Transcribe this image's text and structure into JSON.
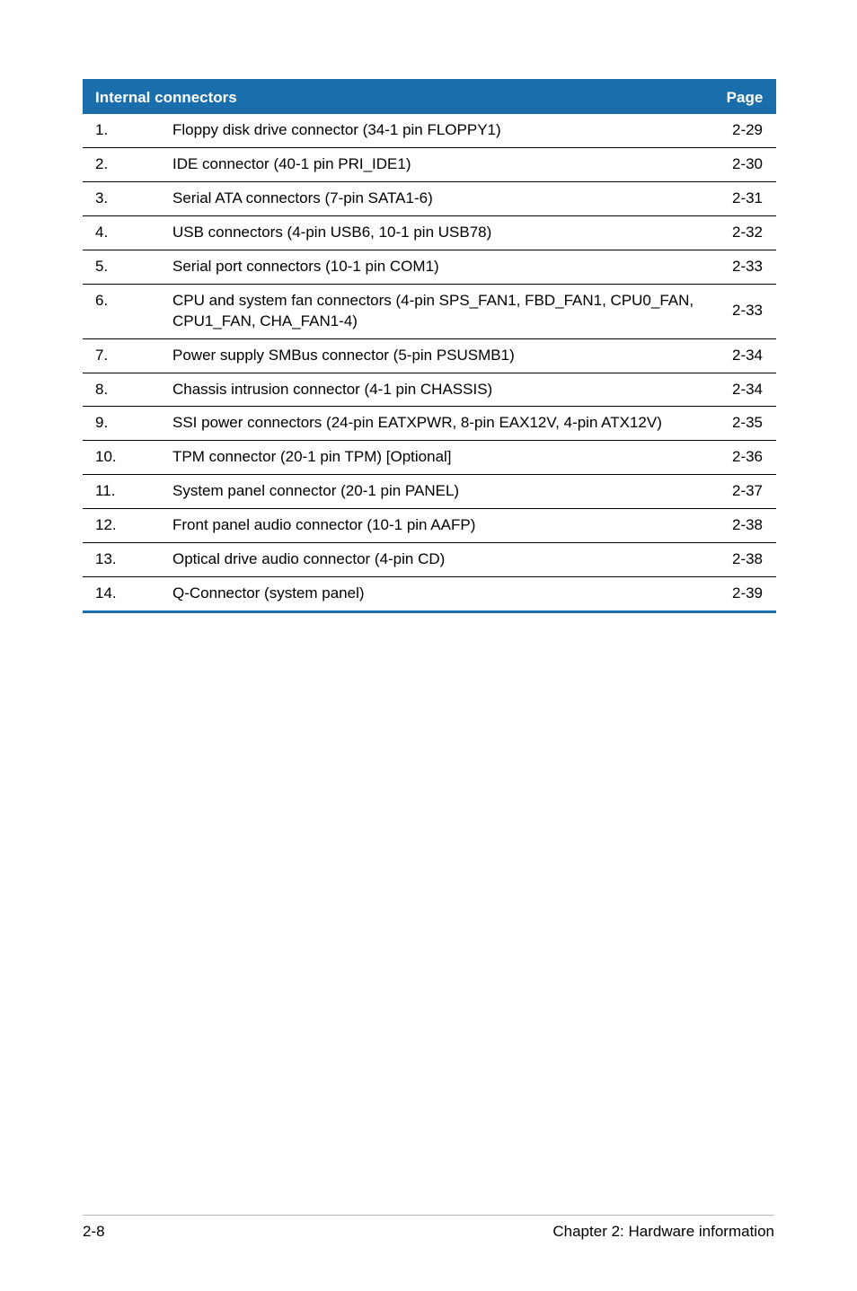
{
  "table": {
    "header": {
      "title": "Internal connectors",
      "page_label": "Page"
    },
    "header_bg": "#1a6eab",
    "header_text_color": "#ffffff",
    "border_color": "#1a6eab",
    "row_border_color": "#000000",
    "font_size": 17,
    "rows": [
      {
        "num": "1.",
        "desc": "Floppy disk drive connector (34-1 pin FLOPPY1)",
        "page": "2-29"
      },
      {
        "num": "2.",
        "desc": "IDE connector (40-1 pin PRI_IDE1)",
        "page": "2-30"
      },
      {
        "num": "3.",
        "desc": "Serial ATA connectors (7-pin SATA1-6)",
        "page": "2-31"
      },
      {
        "num": "4.",
        "desc": "USB connectors (4-pin USB6, 10-1 pin USB78)",
        "page": "2-32"
      },
      {
        "num": "5.",
        "desc": "Serial port connectors (10-1 pin COM1)",
        "page": "2-33"
      },
      {
        "num": "6.",
        "desc": "CPU and system fan connectors (4-pin SPS_FAN1, FBD_FAN1, CPU0_FAN, CPU1_FAN, CHA_FAN1-4)",
        "page": "2-33"
      },
      {
        "num": "7.",
        "desc": "Power supply SMBus connector (5-pin PSUSMB1)",
        "page": "2-34"
      },
      {
        "num": "8.",
        "desc": "Chassis intrusion connector (4-1 pin CHASSIS)",
        "page": "2-34"
      },
      {
        "num": "9.",
        "desc": "SSI power connectors (24-pin EATXPWR, 8-pin EAX12V, 4-pin ATX12V)",
        "page": "2-35"
      },
      {
        "num": "10.",
        "desc": "TPM connector (20-1 pin TPM) [Optional]",
        "page": "2-36"
      },
      {
        "num": "11.",
        "desc": "System panel connector (20-1 pin PANEL)",
        "page": "2-37"
      },
      {
        "num": "12.",
        "desc": "Front panel audio connector (10-1 pin AAFP)",
        "page": "2-38"
      },
      {
        "num": "13.",
        "desc": "Optical drive audio connector (4-pin CD)",
        "page": "2-38"
      },
      {
        "num": "14.",
        "desc": "Q-Connector (system panel)",
        "page": "2-39"
      }
    ]
  },
  "footer": {
    "left": "2-8",
    "right": "Chapter 2: Hardware information"
  }
}
